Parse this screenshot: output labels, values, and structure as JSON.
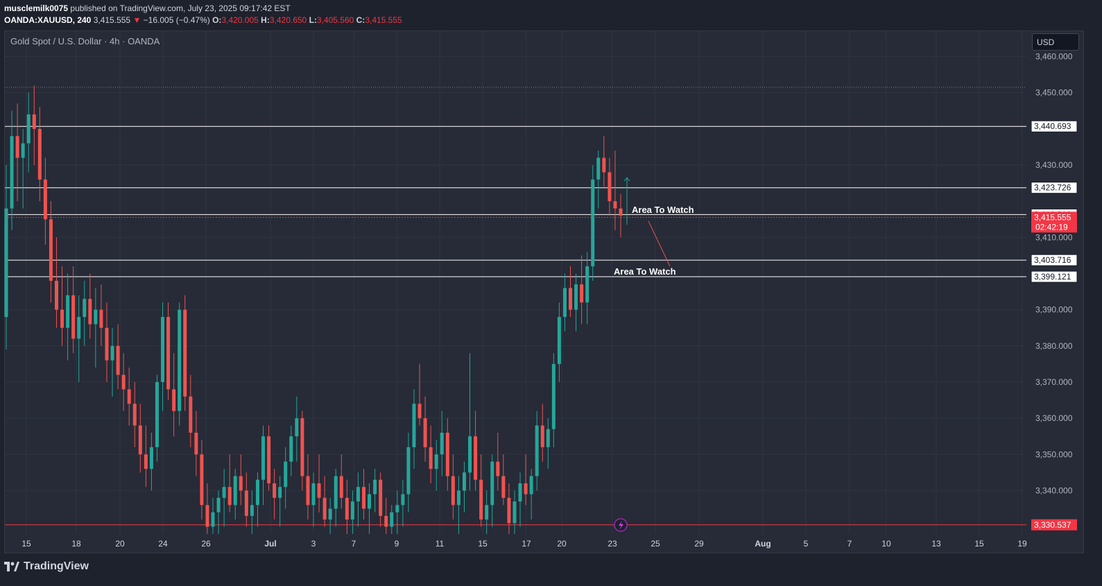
{
  "header": {
    "author": "musclemilk0075",
    "published": " published on TradingView.com, July 23, 2025 09:17:42 EST",
    "symbol": "OANDA:XAUUSD, 240",
    "price": "3,415.555",
    "change_arrow": "▼",
    "change": "−16.005 (−0.47%)",
    "o_label": "O:",
    "o_value": "3,420.005",
    "h_label": "H:",
    "h_value": "3,420.650",
    "l_label": "L:",
    "l_value": "3,405.560",
    "c_label": "C:",
    "c_value": "3,415.555"
  },
  "legend_title": "Gold Spot / U.S. Dollar · 4h · OANDA",
  "currency": "USD",
  "footer": {
    "brand": "TradingView",
    "logo_icon": "tradingview-logo-icon"
  },
  "colors": {
    "background": "#262b37",
    "up": "#26a69a",
    "down": "#ef5350",
    "level_line": "#ffffff",
    "current_price": "#f23645",
    "grid": "#2f3441"
  },
  "chart_data": {
    "type": "candlestick",
    "title": "Gold Spot / U.S. Dollar · 4h · OANDA",
    "ylim": [
      3328,
      3467
    ],
    "y_ticks": [
      3340,
      3350,
      3360,
      3370,
      3380,
      3390,
      3410,
      3430,
      3450,
      3460
    ],
    "y_tick_labels": [
      "3,340.000",
      "3,350.000",
      "3,360.000",
      "3,370.000",
      "3,380.000",
      "3,390.000",
      "3,410.000",
      "3,430.000",
      "3,450.000",
      "3,460.000"
    ],
    "x_labels": [
      "15",
      "18",
      "20",
      "24",
      "26",
      "Jul",
      "3",
      "7",
      "9",
      "11",
      "15",
      "17",
      "20",
      "23",
      "25",
      "29",
      "Aug",
      "5",
      "7",
      "10",
      "13",
      "15",
      "19"
    ],
    "horizontal_levels": [
      {
        "value": 3440.693,
        "label": "3,440.693"
      },
      {
        "value": 3423.726,
        "label": "3,423.726"
      },
      {
        "value": 3416.31,
        "label": "3,416.310"
      },
      {
        "value": 3403.716,
        "label": "3,403.716"
      },
      {
        "value": 3399.121,
        "label": "3,399.121"
      }
    ],
    "support_level": {
      "value": 3330.537,
      "label": "3,330.537"
    },
    "dotted_level": {
      "value": 3451.5
    },
    "current_price": {
      "value": 3415.555,
      "label": "3,415.555",
      "countdown": "02:42:19"
    },
    "annotations": [
      {
        "text": "Area To Watch",
        "price": 3417.5
      },
      {
        "text": "Area To Watch",
        "price": 3400.5
      }
    ],
    "candles": [
      [
        3388,
        3430,
        3379,
        3418
      ],
      [
        3418,
        3445,
        3412,
        3438
      ],
      [
        3438,
        3447,
        3420,
        3432
      ],
      [
        3432,
        3440,
        3418,
        3436
      ],
      [
        3436,
        3450,
        3428,
        3444
      ],
      [
        3444,
        3452,
        3430,
        3440
      ],
      [
        3440,
        3446,
        3420,
        3426
      ],
      [
        3426,
        3432,
        3408,
        3415
      ],
      [
        3415,
        3420,
        3392,
        3398
      ],
      [
        3398,
        3410,
        3385,
        3390
      ],
      [
        3390,
        3402,
        3380,
        3385
      ],
      [
        3385,
        3400,
        3376,
        3394
      ],
      [
        3394,
        3402,
        3378,
        3382
      ],
      [
        3382,
        3394,
        3370,
        3388
      ],
      [
        3388,
        3398,
        3380,
        3393
      ],
      [
        3393,
        3400,
        3382,
        3386
      ],
      [
        3386,
        3396,
        3374,
        3390
      ],
      [
        3390,
        3397,
        3380,
        3385
      ],
      [
        3385,
        3392,
        3370,
        3376
      ],
      [
        3376,
        3385,
        3366,
        3380
      ],
      [
        3380,
        3386,
        3368,
        3372
      ],
      [
        3372,
        3378,
        3362,
        3368
      ],
      [
        3368,
        3374,
        3358,
        3364
      ],
      [
        3364,
        3370,
        3352,
        3358
      ],
      [
        3358,
        3364,
        3345,
        3350
      ],
      [
        3350,
        3358,
        3341,
        3346
      ],
      [
        3346,
        3356,
        3340,
        3352
      ],
      [
        3352,
        3372,
        3348,
        3370
      ],
      [
        3370,
        3392,
        3362,
        3388
      ],
      [
        3388,
        3392,
        3365,
        3368
      ],
      [
        3368,
        3378,
        3355,
        3362
      ],
      [
        3362,
        3392,
        3358,
        3390
      ],
      [
        3390,
        3394,
        3362,
        3366
      ],
      [
        3366,
        3372,
        3352,
        3356
      ],
      [
        3356,
        3362,
        3344,
        3350
      ],
      [
        3350,
        3354,
        3332,
        3336
      ],
      [
        3336,
        3342,
        3328,
        3330
      ],
      [
        3330,
        3338,
        3328,
        3334
      ],
      [
        3334,
        3340,
        3328,
        3338
      ],
      [
        3338,
        3346,
        3330,
        3341
      ],
      [
        3341,
        3350,
        3334,
        3336
      ],
      [
        3336,
        3346,
        3332,
        3344
      ],
      [
        3344,
        3350,
        3336,
        3340
      ],
      [
        3340,
        3345,
        3330,
        3333
      ],
      [
        3333,
        3340,
        3328,
        3336
      ],
      [
        3336,
        3345,
        3330,
        3343
      ],
      [
        3343,
        3358,
        3336,
        3355
      ],
      [
        3355,
        3358,
        3340,
        3342
      ],
      [
        3342,
        3346,
        3332,
        3338
      ],
      [
        3338,
        3344,
        3330,
        3341
      ],
      [
        3341,
        3352,
        3335,
        3348
      ],
      [
        3348,
        3358,
        3344,
        3355
      ],
      [
        3355,
        3366,
        3348,
        3360
      ],
      [
        3360,
        3362,
        3340,
        3344
      ],
      [
        3344,
        3350,
        3332,
        3336
      ],
      [
        3336,
        3345,
        3330,
        3342
      ],
      [
        3342,
        3350,
        3334,
        3338
      ],
      [
        3338,
        3344,
        3330,
        3332
      ],
      [
        3332,
        3338,
        3328,
        3335
      ],
      [
        3335,
        3346,
        3330,
        3344
      ],
      [
        3344,
        3350,
        3335,
        3338
      ],
      [
        3338,
        3343,
        3328,
        3332
      ],
      [
        3332,
        3340,
        3328,
        3337
      ],
      [
        3337,
        3345,
        3330,
        3341
      ],
      [
        3341,
        3346,
        3332,
        3335
      ],
      [
        3335,
        3342,
        3328,
        3339
      ],
      [
        3339,
        3346,
        3334,
        3343
      ],
      [
        3343,
        3345,
        3330,
        3333
      ],
      [
        3333,
        3338,
        3328,
        3330
      ],
      [
        3330,
        3336,
        3328,
        3334
      ],
      [
        3334,
        3340,
        3328,
        3336
      ],
      [
        3336,
        3343,
        3330,
        3339
      ],
      [
        3339,
        3356,
        3334,
        3352
      ],
      [
        3352,
        3368,
        3346,
        3364
      ],
      [
        3364,
        3375,
        3358,
        3360
      ],
      [
        3360,
        3366,
        3348,
        3352
      ],
      [
        3352,
        3358,
        3342,
        3346
      ],
      [
        3346,
        3354,
        3340,
        3350
      ],
      [
        3350,
        3362,
        3344,
        3356
      ],
      [
        3356,
        3360,
        3340,
        3344
      ],
      [
        3344,
        3350,
        3332,
        3336
      ],
      [
        3336,
        3344,
        3328,
        3340
      ],
      [
        3340,
        3348,
        3334,
        3345
      ],
      [
        3345,
        3378,
        3340,
        3355
      ],
      [
        3355,
        3362,
        3340,
        3343
      ],
      [
        3343,
        3350,
        3330,
        3332
      ],
      [
        3332,
        3340,
        3328,
        3336
      ],
      [
        3336,
        3350,
        3330,
        3348
      ],
      [
        3348,
        3356,
        3340,
        3344
      ],
      [
        3344,
        3350,
        3336,
        3338
      ],
      [
        3338,
        3342,
        3328,
        3331
      ],
      [
        3331,
        3340,
        3328,
        3337
      ],
      [
        3337,
        3345,
        3330,
        3342
      ],
      [
        3342,
        3350,
        3336,
        3339
      ],
      [
        3339,
        3346,
        3332,
        3344
      ],
      [
        3344,
        3362,
        3340,
        3358
      ],
      [
        3358,
        3364,
        3348,
        3352
      ],
      [
        3352,
        3360,
        3346,
        3357
      ],
      [
        3357,
        3378,
        3352,
        3375
      ],
      [
        3375,
        3392,
        3370,
        3388
      ],
      [
        3388,
        3400,
        3384,
        3396
      ],
      [
        3396,
        3402,
        3388,
        3390
      ],
      [
        3390,
        3400,
        3384,
        3397
      ],
      [
        3397,
        3405,
        3386,
        3392
      ],
      [
        3392,
        3406,
        3386,
        3402
      ],
      [
        3402,
        3430,
        3398,
        3426
      ],
      [
        3426,
        3434,
        3418,
        3432
      ],
      [
        3432,
        3438,
        3424,
        3428
      ],
      [
        3428,
        3432,
        3416,
        3420
      ],
      [
        3420,
        3434,
        3412,
        3418
      ],
      [
        3418,
        3422,
        3410,
        3416
      ]
    ]
  }
}
